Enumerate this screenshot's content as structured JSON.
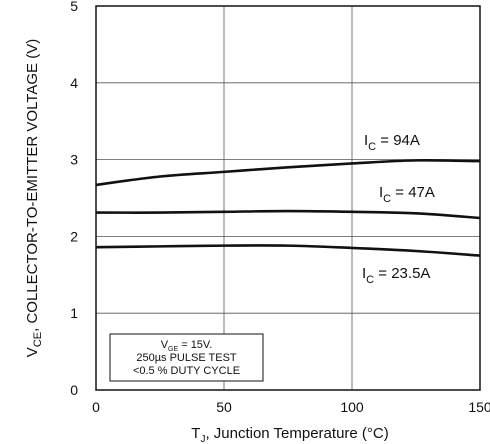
{
  "chart_data": {
    "type": "line",
    "ylabel": {
      "main": "V",
      "sub": "CE",
      "rest": ", COLLECTOR-TO-EMITTER VOLTAGE (V)"
    },
    "xlabel": {
      "main": "T",
      "sub": "J",
      "rest": ", Junction Temperature (°C)"
    },
    "xlim": [
      0,
      150
    ],
    "ylim": [
      0,
      5
    ],
    "xticks": [
      "0",
      "50",
      "100",
      "150"
    ],
    "yticks": [
      "0",
      "1",
      "2",
      "3",
      "4",
      "5"
    ],
    "grid": true,
    "series": [
      {
        "name": "I_C = 94A",
        "label": {
          "main": "I",
          "sub": "C",
          "rest": " = 94A"
        },
        "x": [
          0,
          25,
          50,
          75,
          100,
          125,
          150
        ],
        "y": [
          2.67,
          2.78,
          2.84,
          2.9,
          2.95,
          2.99,
          2.98
        ]
      },
      {
        "name": "I_C = 47A",
        "label": {
          "main": "I",
          "sub": "C",
          "rest": " = 47A"
        },
        "x": [
          0,
          25,
          50,
          75,
          100,
          125,
          150
        ],
        "y": [
          2.31,
          2.31,
          2.32,
          2.33,
          2.32,
          2.3,
          2.24
        ]
      },
      {
        "name": "I_C = 23.5A",
        "label": {
          "main": "I",
          "sub": "C",
          "rest": " = 23.5A"
        },
        "x": [
          0,
          25,
          50,
          75,
          100,
          125,
          150
        ],
        "y": [
          1.86,
          1.87,
          1.88,
          1.88,
          1.85,
          1.81,
          1.75
        ]
      }
    ],
    "annotation": {
      "line1": {
        "main": "V",
        "sub": "GE",
        "rest": " = 15V."
      },
      "line2": "250µs PULSE TEST",
      "line3": "<0.5 % DUTY CYCLE"
    }
  }
}
